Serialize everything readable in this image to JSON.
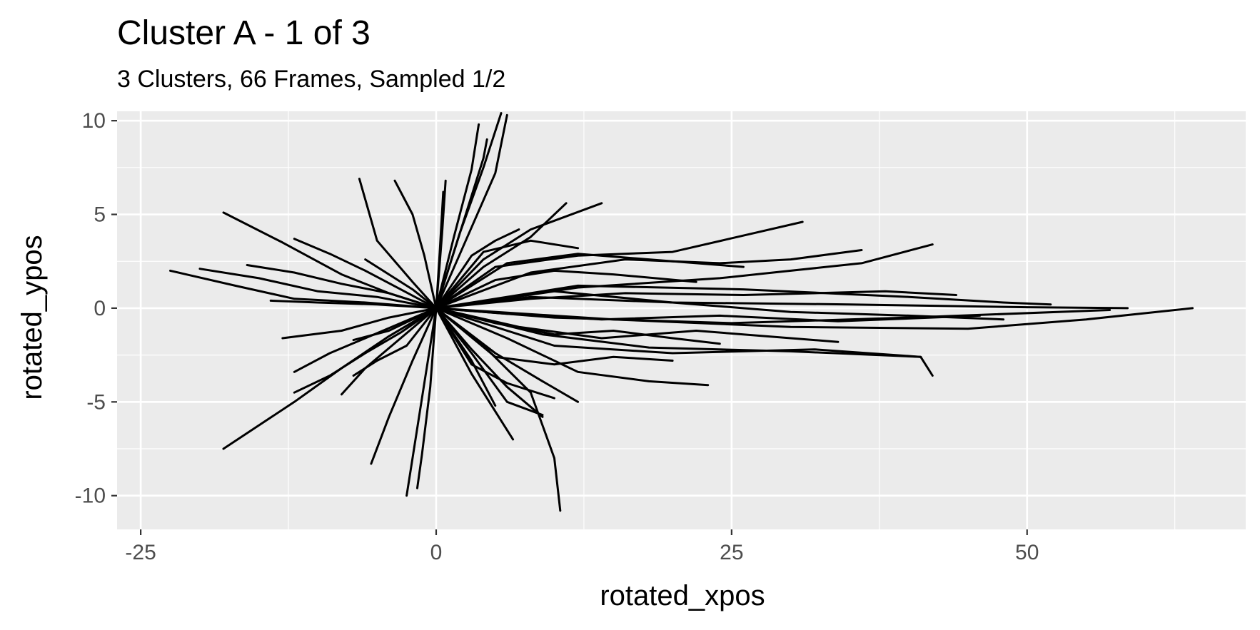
{
  "chart_data": {
    "type": "line",
    "title": "Cluster A - 1 of 3",
    "subtitle": "3 Clusters, 66 Frames, Sampled 1/2",
    "xlabel": "rotated_xpos",
    "ylabel": "rotated_ypos",
    "xlim": [
      -27,
      68.5
    ],
    "ylim": [
      -11.8,
      10.5
    ],
    "x_ticks": [
      -25,
      0,
      25,
      50
    ],
    "x_tick_labels": [
      "-25",
      "0",
      "25",
      "50"
    ],
    "y_ticks": [
      10,
      5,
      0,
      -5,
      -10
    ],
    "y_tick_labels": [
      "10",
      "5",
      "0",
      "-5",
      "-10"
    ],
    "x_minor_gridlines": [
      -12.5,
      12.5,
      37.5,
      62.5
    ],
    "y_minor_gridlines": [
      7.5,
      2.5,
      -2.5,
      -7.5
    ],
    "grid": true,
    "legend": "none",
    "panel_background": "#ebebeb",
    "grid_color": "#ffffff",
    "line_color": "#000000",
    "series": [
      {
        "x": [
          0,
          8,
          20,
          35,
          50,
          58.5
        ],
        "y": [
          0,
          0.6,
          0.3,
          0.2,
          0.05,
          0
        ]
      },
      {
        "x": [
          0,
          10,
          25,
          40,
          57
        ],
        "y": [
          0,
          -0.5,
          -0.8,
          -0.5,
          -0.1
        ]
      },
      {
        "x": [
          0,
          12,
          26,
          40,
          48,
          52
        ],
        "y": [
          0,
          1.2,
          1.0,
          0.6,
          0.3,
          0.2
        ]
      },
      {
        "x": [
          0,
          9,
          18,
          30,
          41,
          42
        ],
        "y": [
          0,
          -1.4,
          -2.1,
          -2.3,
          -2.6,
          -3.6
        ]
      },
      {
        "x": [
          0,
          5,
          12,
          20,
          31
        ],
        "y": [
          0,
          2.2,
          2.8,
          3.0,
          4.6
        ]
      },
      {
        "x": [
          0,
          8,
          16,
          24,
          30,
          36
        ],
        "y": [
          0,
          1.9,
          2.6,
          2.4,
          2.6,
          3.1
        ]
      },
      {
        "x": [
          0,
          12,
          24,
          36,
          42
        ],
        "y": [
          0,
          1.1,
          1.6,
          2.4,
          3.4
        ]
      },
      {
        "x": [
          0,
          6,
          12,
          18,
          23
        ],
        "y": [
          0,
          -1.6,
          -3.4,
          -3.9,
          -4.1
        ]
      },
      {
        "x": [
          0,
          10,
          20,
          32,
          41
        ],
        "y": [
          0,
          -2.0,
          -2.4,
          -2.2,
          -2.6
        ]
      },
      {
        "x": [
          0,
          15,
          30,
          45,
          55,
          64
        ],
        "y": [
          0,
          -0.6,
          -1.0,
          -1.1,
          -0.6,
          0
        ]
      },
      {
        "x": [
          0,
          10,
          20,
          30,
          40,
          48
        ],
        "y": [
          0,
          0.9,
          0.3,
          -0.2,
          -0.4,
          -0.6
        ]
      },
      {
        "x": [
          0,
          7,
          14,
          22,
          34
        ],
        "y": [
          0,
          -1.0,
          -1.6,
          -1.2,
          -1.8
        ]
      },
      {
        "x": [
          0,
          6,
          12,
          18,
          26
        ],
        "y": [
          0,
          2.4,
          2.9,
          2.6,
          2.2
        ]
      },
      {
        "x": [
          0,
          4,
          8,
          11
        ],
        "y": [
          0,
          2.2,
          3.8,
          5.6
        ]
      },
      {
        "x": [
          0,
          5,
          9,
          12
        ],
        "y": [
          0,
          -2.4,
          -3.9,
          -5.0
        ]
      },
      {
        "x": [
          0,
          5,
          10,
          15,
          20
        ],
        "y": [
          0,
          -2.6,
          -3.0,
          -2.6,
          -2.8
        ]
      },
      {
        "x": [
          0,
          3,
          6,
          9
        ],
        "y": [
          0,
          -2.2,
          -4.2,
          -5.8
        ]
      },
      {
        "x": [
          0,
          2,
          4,
          5.5
        ],
        "y": [
          0,
          4.0,
          7.5,
          10.4
        ]
      },
      {
        "x": [
          0,
          1.5,
          3,
          3.6
        ],
        "y": [
          0,
          3.8,
          7.4,
          9.8
        ]
      },
      {
        "x": [
          0,
          2.5,
          5,
          6
        ],
        "y": [
          0,
          3.6,
          7.2,
          10.3
        ]
      },
      {
        "x": [
          0,
          2,
          4,
          4.3
        ],
        "y": [
          0,
          4.0,
          8.0,
          9.0
        ]
      },
      {
        "x": [
          0,
          0.5,
          0.8
        ],
        "y": [
          0,
          4.0,
          6.8
        ]
      },
      {
        "x": [
          0,
          0.3,
          0.6
        ],
        "y": [
          0,
          3.0,
          6.2
        ]
      },
      {
        "x": [
          0,
          -1,
          -2,
          -2.5
        ],
        "y": [
          0,
          -4.0,
          -8.0,
          -10.0
        ]
      },
      {
        "x": [
          0,
          -0.5,
          -1.2,
          -1.6
        ],
        "y": [
          0,
          -4.2,
          -7.8,
          -9.6
        ]
      },
      {
        "x": [
          0,
          -2,
          -4,
          -5.5
        ],
        "y": [
          0,
          -2.8,
          -5.8,
          -8.3
        ]
      },
      {
        "x": [
          0,
          4,
          8,
          10,
          10.5
        ],
        "y": [
          0,
          -2.0,
          -4.5,
          -8.0,
          -10.8
        ]
      },
      {
        "x": [
          0,
          3,
          6.5
        ],
        "y": [
          0,
          -3.5,
          -7.0
        ]
      },
      {
        "x": [
          0,
          3,
          5
        ],
        "y": [
          0,
          -2.8,
          -5.2
        ]
      },
      {
        "x": [
          0,
          3,
          6,
          9
        ],
        "y": [
          0,
          -2.4,
          -5.0,
          -5.7
        ]
      },
      {
        "x": [
          0,
          -1,
          -2,
          -3.5
        ],
        "y": [
          0,
          2.8,
          5.0,
          6.8
        ]
      },
      {
        "x": [
          0,
          -2,
          -5,
          -6.5
        ],
        "y": [
          0,
          1.4,
          3.6,
          6.9
        ]
      },
      {
        "x": [
          0,
          -4,
          -8,
          -13,
          -18
        ],
        "y": [
          0,
          0.8,
          1.8,
          3.5,
          5.1
        ]
      },
      {
        "x": [
          0,
          -6,
          -12,
          -17,
          -22.5
        ],
        "y": [
          0,
          0.3,
          0.5,
          1.2,
          2.0
        ]
      },
      {
        "x": [
          0,
          -5,
          -10,
          -15,
          -20
        ],
        "y": [
          0,
          0.6,
          0.9,
          1.6,
          2.1
        ]
      },
      {
        "x": [
          0,
          -4,
          -8,
          -12,
          -16
        ],
        "y": [
          0,
          0.8,
          1.3,
          1.9,
          2.3
        ]
      },
      {
        "x": [
          0,
          -3,
          -6,
          -9,
          -12
        ],
        "y": [
          0,
          1.0,
          2.0,
          2.9,
          3.7
        ]
      },
      {
        "x": [
          0,
          -3,
          -6,
          -9,
          -12
        ],
        "y": [
          0,
          -0.8,
          -1.6,
          -2.4,
          -3.4
        ]
      },
      {
        "x": [
          0,
          -3,
          -6,
          -9,
          -12
        ],
        "y": [
          0,
          -1.3,
          -2.4,
          -3.6,
          -4.5
        ]
      },
      {
        "x": [
          0,
          -4,
          -8,
          -12,
          -18
        ],
        "y": [
          0,
          -1.5,
          -3.2,
          -5.0,
          -7.5
        ]
      },
      {
        "x": [
          0,
          -3,
          -6,
          -8
        ],
        "y": [
          0,
          -1.6,
          -3.2,
          -4.6
        ]
      },
      {
        "x": [
          0,
          -2,
          -4,
          -7
        ],
        "y": [
          0,
          -0.6,
          -1.2,
          -1.7
        ]
      },
      {
        "x": [
          0,
          -4,
          -8,
          -13
        ],
        "y": [
          0,
          -0.5,
          -1.2,
          -1.6
        ]
      },
      {
        "x": [
          0,
          -5,
          -10,
          -14
        ],
        "y": [
          0,
          0.2,
          0.3,
          0.4
        ]
      },
      {
        "x": [
          0,
          -2,
          -4,
          -6
        ],
        "y": [
          0,
          1.0,
          1.8,
          2.6
        ]
      },
      {
        "x": [
          0,
          -2.5,
          -5,
          -7
        ],
        "y": [
          0,
          -2.0,
          -2.8,
          -3.6
        ]
      },
      {
        "x": [
          0,
          5,
          10,
          15,
          22
        ],
        "y": [
          0,
          1.5,
          2.0,
          1.8,
          1.4
        ]
      },
      {
        "x": [
          0,
          5,
          10,
          15,
          20,
          24
        ],
        "y": [
          0,
          -0.8,
          -1.4,
          -1.2,
          -1.6,
          -1.9
        ]
      },
      {
        "x": [
          0,
          8,
          16,
          26,
          38,
          44
        ],
        "y": [
          0,
          0.5,
          0.8,
          0.7,
          0.9,
          0.7
        ]
      },
      {
        "x": [
          0,
          6,
          14,
          24,
          34,
          46
        ],
        "y": [
          0,
          -0.3,
          -0.6,
          -0.4,
          -0.7,
          -0.4
        ]
      },
      {
        "x": [
          0,
          4,
          8,
          14
        ],
        "y": [
          0,
          2.6,
          4.2,
          5.6
        ]
      },
      {
        "x": [
          0,
          4,
          8,
          12
        ],
        "y": [
          0,
          3.0,
          3.6,
          3.2
        ]
      },
      {
        "x": [
          0,
          3,
          5,
          7
        ],
        "y": [
          0,
          2.8,
          3.6,
          4.2
        ]
      },
      {
        "x": [
          0,
          3,
          6,
          10
        ],
        "y": [
          0,
          -3.0,
          -4.0,
          -4.8
        ]
      }
    ]
  }
}
